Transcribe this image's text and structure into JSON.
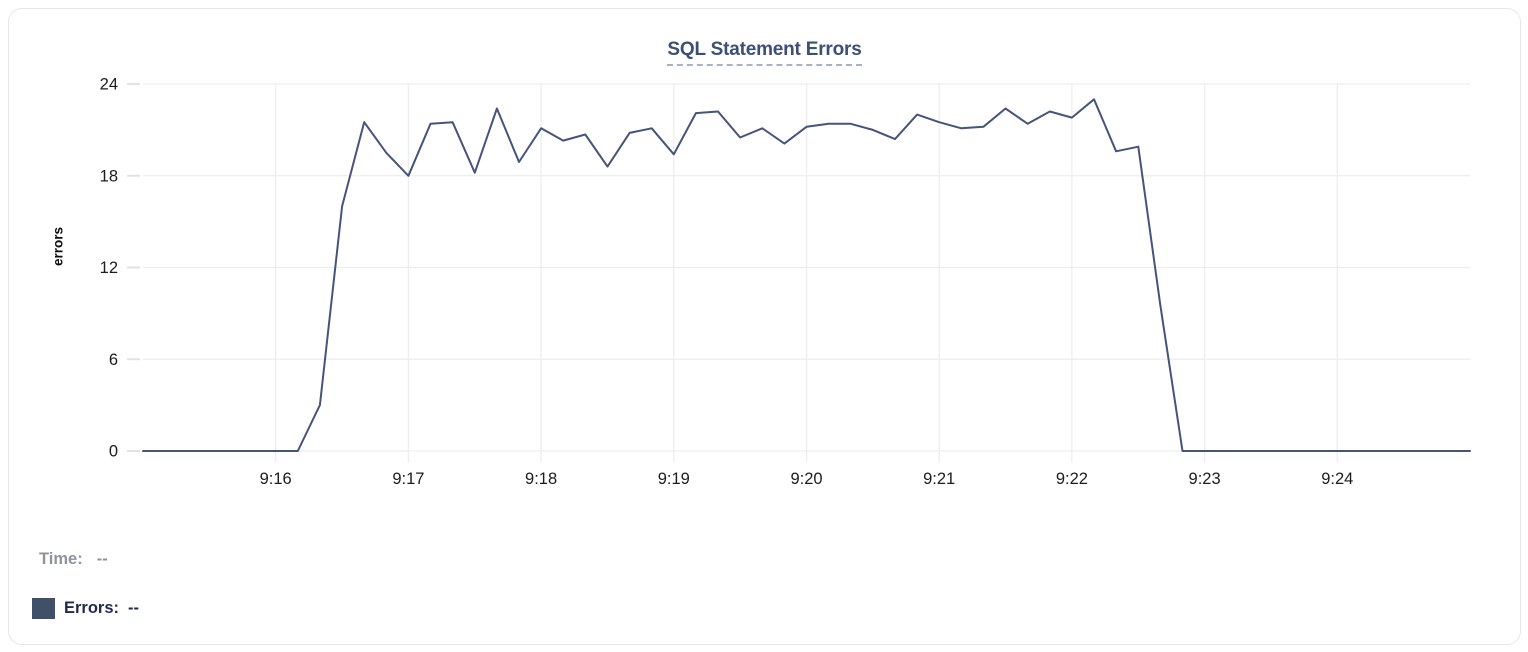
{
  "chart_data": {
    "type": "line",
    "title": "SQL Statement Errors",
    "xlabel": "",
    "ylabel": "errors",
    "ylim": [
      0,
      24
    ],
    "y_ticks": [
      0,
      6,
      12,
      18,
      24
    ],
    "xlim_seconds": [
      0,
      600
    ],
    "x_start_time": "9:15:00",
    "x_end_time": "9:25:00",
    "interval_seconds": 10,
    "grid": true,
    "legend_position": "bottom-left",
    "x_ticks": [
      {
        "label": "9:16",
        "t": 60
      },
      {
        "label": "9:17",
        "t": 120
      },
      {
        "label": "9:18",
        "t": 180
      },
      {
        "label": "9:19",
        "t": 240
      },
      {
        "label": "9:20",
        "t": 300
      },
      {
        "label": "9:21",
        "t": 360
      },
      {
        "label": "9:22",
        "t": 420
      },
      {
        "label": "9:23",
        "t": 480
      },
      {
        "label": "9:24",
        "t": 540
      }
    ],
    "series": [
      {
        "name": "Errors",
        "color": "#44547a",
        "x_times": [
          "9:15:00",
          "9:15:10",
          "9:15:20",
          "9:15:30",
          "9:15:40",
          "9:15:50",
          "9:16:00",
          "9:16:10",
          "9:16:20",
          "9:16:30",
          "9:16:40",
          "9:16:50",
          "9:17:00",
          "9:17:10",
          "9:17:20",
          "9:17:30",
          "9:17:40",
          "9:17:50",
          "9:18:00",
          "9:18:10",
          "9:18:20",
          "9:18:30",
          "9:18:40",
          "9:18:50",
          "9:19:00",
          "9:19:10",
          "9:19:20",
          "9:19:30",
          "9:19:40",
          "9:19:50",
          "9:20:00",
          "9:20:10",
          "9:20:20",
          "9:20:30",
          "9:20:40",
          "9:20:50",
          "9:21:00",
          "9:21:10",
          "9:21:20",
          "9:21:30",
          "9:21:40",
          "9:21:50",
          "9:22:00",
          "9:22:10",
          "9:22:20",
          "9:22:30",
          "9:22:40",
          "9:22:50",
          "9:23:00",
          "9:23:10",
          "9:23:20",
          "9:23:30",
          "9:23:40",
          "9:23:50",
          "9:24:00",
          "9:24:10",
          "9:24:20",
          "9:24:30",
          "9:24:40",
          "9:24:50",
          "9:25:00"
        ],
        "values": [
          0,
          0,
          0,
          0,
          0,
          0,
          0,
          0,
          3,
          16,
          21.5,
          19.5,
          18,
          21.4,
          21.5,
          18.2,
          22.4,
          18.9,
          21.1,
          20.3,
          20.7,
          18.6,
          20.8,
          21.1,
          19.4,
          22.1,
          22.2,
          20.5,
          21.1,
          20.1,
          21.2,
          21.4,
          21.4,
          21,
          20.4,
          22,
          21.5,
          21.1,
          21.2,
          22.4,
          21.4,
          22.2,
          21.8,
          23,
          19.6,
          19.9,
          9.5,
          0,
          0,
          0,
          0,
          0,
          0,
          0,
          0,
          0,
          0,
          0,
          0,
          0,
          0
        ]
      }
    ]
  },
  "legend": {
    "time_label": "Time:",
    "time_value": "--",
    "errors_label": "Errors:",
    "errors_value": "--",
    "swatch_color": "#405069"
  },
  "colors": {
    "title": "#3d4f72",
    "title_underline": "#a8b2c7",
    "line": "#44547a",
    "grid": "#ebedf0",
    "tick": "#e0e2e7",
    "axis_text": "#1b1c1e",
    "legend_muted": "#8e939c",
    "legend_strong": "#1e2b4d",
    "card_border": "#e4e6ea"
  }
}
